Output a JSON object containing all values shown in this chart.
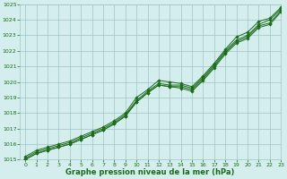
{
  "xlabel": "Graphe pression niveau de la mer (hPa)",
  "x": [
    0,
    1,
    2,
    3,
    4,
    5,
    6,
    7,
    8,
    9,
    10,
    11,
    12,
    13,
    14,
    15,
    16,
    17,
    18,
    19,
    20,
    21,
    22,
    23
  ],
  "series": [
    [
      1015.2,
      1015.6,
      1015.8,
      1016.0,
      1016.2,
      1016.5,
      1016.8,
      1017.1,
      1017.5,
      1018.0,
      1019.0,
      1019.5,
      1020.1,
      1020.0,
      1019.9,
      1019.7,
      1020.4,
      1021.2,
      1022.1,
      1022.9,
      1023.2,
      1023.9,
      1024.1,
      1024.8
    ],
    [
      1015.1,
      1015.5,
      1015.7,
      1015.9,
      1016.1,
      1016.4,
      1016.7,
      1017.0,
      1017.4,
      1017.9,
      1018.8,
      1019.4,
      1019.9,
      1019.8,
      1019.8,
      1019.6,
      1020.3,
      1021.1,
      1022.0,
      1022.7,
      1023.0,
      1023.7,
      1024.0,
      1024.7
    ],
    [
      1015.0,
      1015.4,
      1015.6,
      1015.8,
      1016.0,
      1016.3,
      1016.6,
      1016.9,
      1017.3,
      1017.8,
      1018.7,
      1019.3,
      1019.8,
      1019.7,
      1019.7,
      1019.5,
      1020.2,
      1021.0,
      1021.9,
      1022.6,
      1022.9,
      1023.6,
      1023.8,
      1024.6
    ],
    [
      1015.0,
      1015.4,
      1015.6,
      1015.8,
      1016.0,
      1016.3,
      1016.6,
      1016.9,
      1017.3,
      1017.8,
      1018.7,
      1019.3,
      1019.8,
      1019.7,
      1019.6,
      1019.4,
      1020.1,
      1020.9,
      1021.8,
      1022.5,
      1022.8,
      1023.5,
      1023.7,
      1024.5
    ]
  ],
  "line_color": "#1a6b1a",
  "marker_color": "#1a6b1a",
  "bg_color": "#d4eeee",
  "grid_color": "#a0c4c4",
  "tick_label_color": "#1a6b1a",
  "xlabel_color": "#1a6b1a",
  "ylim": [
    1015,
    1025
  ],
  "xlim": [
    -0.5,
    23
  ],
  "yticks": [
    1015,
    1016,
    1017,
    1018,
    1019,
    1020,
    1021,
    1022,
    1023,
    1024,
    1025
  ],
  "xticks": [
    0,
    1,
    2,
    3,
    4,
    5,
    6,
    7,
    8,
    9,
    10,
    11,
    12,
    13,
    14,
    15,
    16,
    17,
    18,
    19,
    20,
    21,
    22,
    23
  ]
}
